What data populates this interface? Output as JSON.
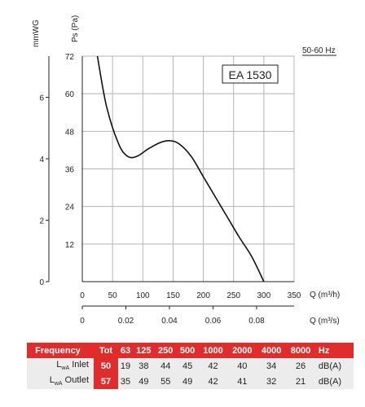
{
  "chart_data": {
    "type": "line",
    "model": "EA 1530",
    "frequency": "50-60 Hz",
    "y_primary": {
      "label": "Ps (Pa)",
      "ylim": [
        0,
        72
      ],
      "ticks": [
        0,
        12,
        24,
        36,
        48,
        60,
        72
      ]
    },
    "y_secondary": {
      "label": "mmWG",
      "ylim": [
        0,
        7.34
      ],
      "ticks": [
        0,
        2,
        4,
        6
      ]
    },
    "x_primary": {
      "label": "Q (m³/h)",
      "xlim": [
        0,
        350
      ],
      "ticks": [
        0,
        50,
        100,
        150,
        200,
        250,
        300,
        350
      ]
    },
    "x_secondary": {
      "label": "Q (m³/s)",
      "ticks": [
        0,
        0.02,
        0.04,
        0.06,
        0.08
      ],
      "tick_labels": [
        "0",
        "0.02",
        "0.04",
        "0.06",
        "0.08"
      ]
    },
    "grid": true,
    "series": [
      {
        "x": [
          25,
          40,
          60,
          75,
          90,
          110,
          130,
          145,
          160,
          180,
          200,
          220,
          240,
          260,
          280,
          300
        ],
        "y": [
          72,
          56,
          44,
          40,
          40,
          42.5,
          44.5,
          45,
          44,
          40,
          33.5,
          27,
          20.5,
          14,
          8,
          0
        ]
      }
    ]
  },
  "table": {
    "header": [
      "Frequency",
      "Tot",
      "63",
      "125",
      "250",
      "500",
      "1000",
      "2000",
      "4000",
      "8000",
      "Hz"
    ],
    "rows": [
      {
        "label_main": "L",
        "label_sub": "wA",
        "label_rest": " Inlet",
        "values": [
          "50",
          "19",
          "38",
          "44",
          "45",
          "42",
          "40",
          "34",
          "26",
          "dB(A)"
        ]
      },
      {
        "label_main": "L",
        "label_sub": "wA",
        "label_rest": " Outlet",
        "values": [
          "57",
          "35",
          "49",
          "55",
          "49",
          "42",
          "41",
          "32",
          "21",
          "dB(A)"
        ]
      }
    ]
  },
  "colors": {
    "accent": "#e12c2c",
    "row_bg": "#ececec",
    "grid": "#b4b4b4"
  }
}
